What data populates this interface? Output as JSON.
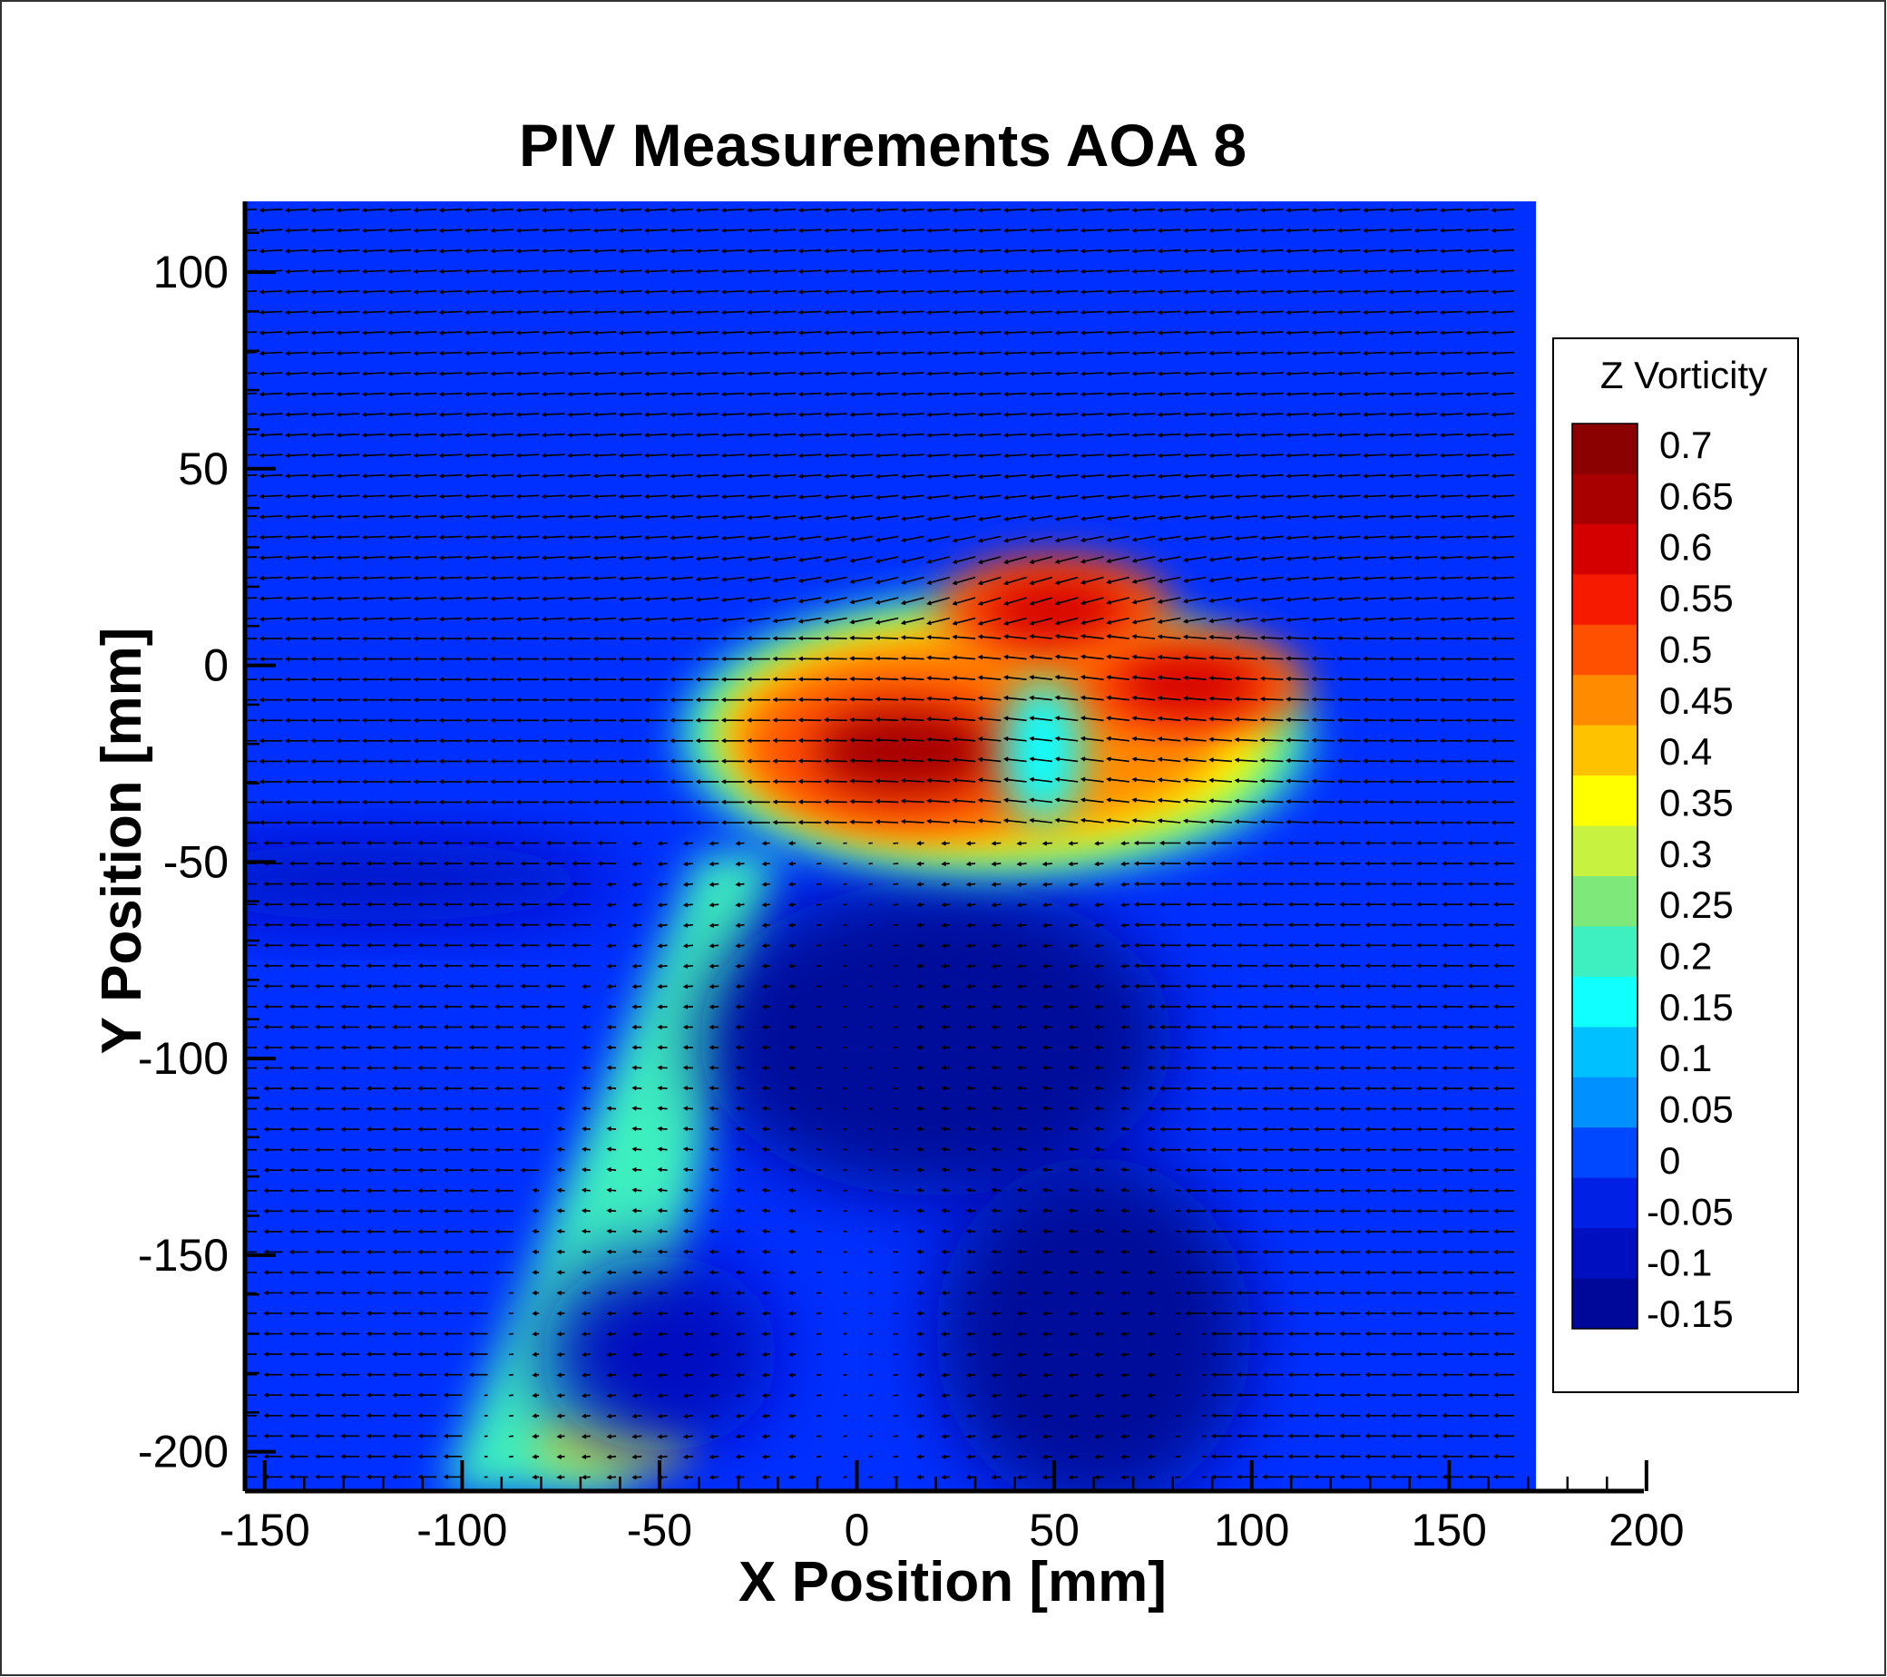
{
  "chart_data": {
    "type": "heatmap",
    "title": "PIV Measurements AOA 8",
    "xlabel": "X Position [mm]",
    "ylabel": "Y Position [mm]",
    "xlim": [
      -155,
      200
    ],
    "ylim": [
      -210,
      118
    ],
    "data_extent": {
      "x": [
        -155,
        172
      ],
      "y": [
        -210,
        118
      ]
    },
    "x_ticks": [
      -150,
      -100,
      -50,
      0,
      50,
      100,
      150,
      200
    ],
    "y_ticks": [
      -200,
      -150,
      -100,
      -50,
      0,
      50,
      100
    ],
    "grid": false,
    "legend_position": "right",
    "colorbar": {
      "title": "Z Vorticity",
      "levels": [
        0.7,
        0.65,
        0.6,
        0.55,
        0.5,
        0.45,
        0.4,
        0.35,
        0.3,
        0.25,
        0.2,
        0.15,
        0.1,
        0.05,
        0,
        -0.05,
        -0.1,
        -0.15
      ],
      "colors": [
        "#8b0000",
        "#a80000",
        "#d40000",
        "#f51a00",
        "#ff5000",
        "#ff8c00",
        "#ffc200",
        "#ffff00",
        "#c8f240",
        "#7fe87a",
        "#3ef0c0",
        "#10ffff",
        "#00c0ff",
        "#0090ff",
        "#0048ff",
        "#0020e6",
        "#0010c0",
        "#00089a"
      ]
    },
    "background_value": 0,
    "vorticity_features": [
      {
        "x": 12,
        "y": -22,
        "value": 0.65
      },
      {
        "x": 50,
        "y": 14,
        "value": 0.62
      },
      {
        "x": 84,
        "y": -5,
        "value": 0.6
      },
      {
        "x": -78,
        "y": -130,
        "value": 0.2
      },
      {
        "x": -65,
        "y": -198,
        "value": 0.3
      },
      {
        "x": 20,
        "y": -90,
        "value": -0.12
      },
      {
        "x": 50,
        "y": -170,
        "value": -0.12
      },
      {
        "x": -50,
        "y": -170,
        "value": -0.1
      }
    ],
    "vector_field": {
      "description": "free stream flowing in the -x direction above the wake, deflected around the vortex pair and slowed in the wake region",
      "freestream_u": -1
    }
  },
  "colors": {
    "axis": "#000000",
    "background": "#ffffff",
    "arrow": "#000000"
  }
}
